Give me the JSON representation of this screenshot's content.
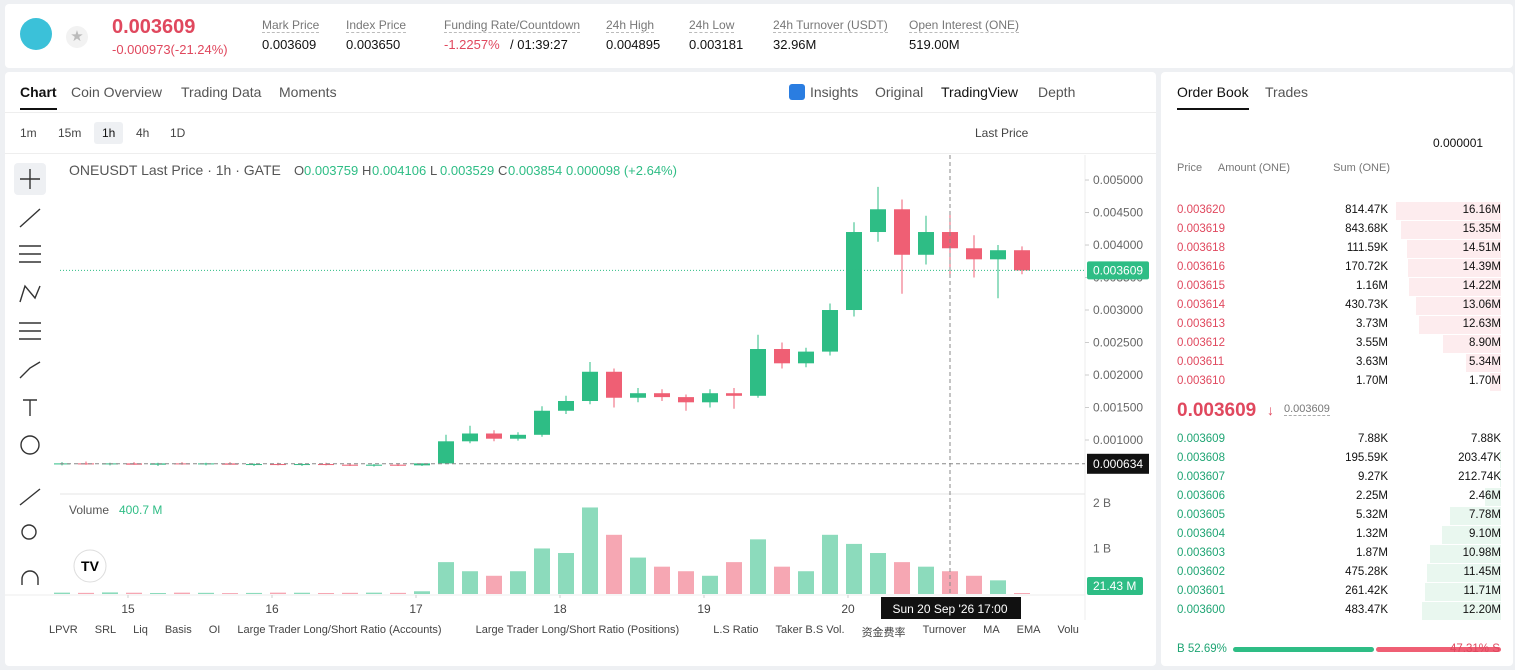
{
  "header": {
    "price": "0.003609",
    "change": "-0.000973(-21.24%)",
    "stats": [
      {
        "label": "Mark Price",
        "value": "0.003609"
      },
      {
        "label": "Index Price",
        "value": "0.003650"
      },
      {
        "label": "Funding Rate/Countdown",
        "value": "-1.2257%",
        "extra": "/ 01:39:27"
      },
      {
        "label": "24h High",
        "value": "0.004895"
      },
      {
        "label": "24h Low",
        "value": "0.003181"
      },
      {
        "label": "24h Turnover (USDT)",
        "value": "32.96M"
      },
      {
        "label": "Open Interest (ONE)",
        "value": "519.00M"
      }
    ]
  },
  "tabs": [
    "Chart",
    "Coin Overview",
    "Trading Data",
    "Moments"
  ],
  "views": [
    "Insights",
    "Original",
    "TradingView",
    "Depth"
  ],
  "intervals": [
    "1m",
    "15m",
    "1h",
    "4h",
    "1D"
  ],
  "price_type": "Last Price",
  "chart_data": {
    "type": "candlestick",
    "title": "ONEUSDT Last Price · 1h · GATE",
    "ohlc": [
      {
        "key": "O",
        "value": "0.003759"
      },
      {
        "key": "H",
        "value": "0.004106"
      },
      {
        "key": "L",
        "value": "0.003529"
      },
      {
        "key": "C",
        "value": "0.003854"
      }
    ],
    "change": "0.000098 (+2.64%)",
    "up_color": "#2ebd85",
    "down_color": "#ef5f74",
    "x": [
      0,
      4,
      8,
      12,
      16,
      20,
      24,
      28,
      32,
      36,
      40,
      44,
      48,
      52,
      56,
      60,
      64,
      68,
      72,
      76,
      80,
      84,
      88,
      92,
      96,
      100,
      104,
      108,
      112,
      116,
      120,
      124,
      128,
      132,
      136,
      140,
      144,
      148,
      152,
      156,
      160
    ],
    "candles": [
      [
        0.00063,
        0.00066,
        0.00061,
        0.00064
      ],
      [
        0.00064,
        0.00067,
        0.00062,
        0.00063
      ],
      [
        0.00063,
        0.00065,
        0.00061,
        0.00064
      ],
      [
        0.00064,
        0.00066,
        0.00062,
        0.00062
      ],
      [
        0.00062,
        0.00065,
        0.0006,
        0.00064
      ],
      [
        0.00064,
        0.00066,
        0.00062,
        0.00063
      ],
      [
        0.00063,
        0.00065,
        0.00061,
        0.00064
      ],
      [
        0.00064,
        0.00066,
        0.00062,
        0.00062
      ],
      [
        0.00062,
        0.00064,
        0.0006,
        0.00063
      ],
      [
        0.00063,
        0.00065,
        0.00061,
        0.00062
      ],
      [
        0.00062,
        0.00064,
        0.0006,
        0.00063
      ],
      [
        0.00063,
        0.00065,
        0.00061,
        0.00062
      ],
      [
        0.00062,
        0.00064,
        0.0006,
        0.00061
      ],
      [
        0.00061,
        0.00063,
        0.00059,
        0.00062
      ],
      [
        0.00062,
        0.00064,
        0.0006,
        0.00061
      ],
      [
        0.00061,
        0.00064,
        0.0006,
        0.00064
      ],
      [
        0.00064,
        0.00108,
        0.00063,
        0.00098
      ],
      [
        0.00098,
        0.00122,
        0.00095,
        0.0011
      ],
      [
        0.0011,
        0.00115,
        0.00098,
        0.00102
      ],
      [
        0.00102,
        0.00112,
        0.00099,
        0.00108
      ],
      [
        0.00108,
        0.00152,
        0.00105,
        0.00145
      ],
      [
        0.00145,
        0.00168,
        0.0014,
        0.0016
      ],
      [
        0.0016,
        0.0022,
        0.00155,
        0.00205
      ],
      [
        0.00205,
        0.0021,
        0.0015,
        0.00165
      ],
      [
        0.00165,
        0.0018,
        0.00158,
        0.00172
      ],
      [
        0.00172,
        0.00178,
        0.0016,
        0.00166
      ],
      [
        0.00166,
        0.0017,
        0.00145,
        0.00158
      ],
      [
        0.00158,
        0.00178,
        0.0015,
        0.00172
      ],
      [
        0.00172,
        0.0018,
        0.00148,
        0.00168
      ],
      [
        0.00168,
        0.00262,
        0.00165,
        0.0024
      ],
      [
        0.0024,
        0.0025,
        0.0021,
        0.00218
      ],
      [
        0.00218,
        0.00242,
        0.00212,
        0.00236
      ],
      [
        0.00236,
        0.0031,
        0.0023,
        0.003
      ],
      [
        0.003,
        0.00435,
        0.0029,
        0.0042
      ],
      [
        0.0042,
        0.004895,
        0.00405,
        0.00455
      ],
      [
        0.00455,
        0.0047,
        0.00325,
        0.00385
      ],
      [
        0.00385,
        0.00445,
        0.0037,
        0.0042
      ],
      [
        0.0042,
        0.0045,
        0.00355,
        0.00395
      ],
      [
        0.00395,
        0.00415,
        0.0035,
        0.00378
      ],
      [
        0.00378,
        0.004,
        0.003181,
        0.00392
      ],
      [
        0.00392,
        0.00398,
        0.00355,
        0.003609
      ]
    ],
    "xlim": [
      0,
      171
    ],
    "xticks": [
      {
        "value": 11,
        "label": "15"
      },
      {
        "value": 35,
        "label": "16"
      },
      {
        "value": 59,
        "label": "17"
      },
      {
        "value": 83,
        "label": "18"
      },
      {
        "value": 107,
        "label": "19"
      },
      {
        "value": 131,
        "label": "20"
      }
    ],
    "ylim": [
      0.0002,
      0.005385
    ],
    "yticks": [
      {
        "value": 0.005,
        "label": "0.005000"
      },
      {
        "value": 0.0045,
        "label": "0.004500"
      },
      {
        "value": 0.004,
        "label": "0.004000"
      },
      {
        "value": 0.0035,
        "label": "0.003500"
      },
      {
        "value": 0.003,
        "label": "0.003000"
      },
      {
        "value": 0.0025,
        "label": "0.002500"
      },
      {
        "value": 0.002,
        "label": "0.002000"
      },
      {
        "value": 0.0015,
        "label": "0.001500"
      },
      {
        "value": 0.001,
        "label": "0.001000"
      }
    ],
    "last_price": 0.003609,
    "crosshair": {
      "x": 148,
      "x_label": "Sun 20 Sep '26   17:00",
      "y": 0.000634
    },
    "volume": {
      "title": "Volume",
      "value": "400.7 M",
      "ylim": [
        0,
        2130
      ],
      "yticks": [
        {
          "value": 2000,
          "label": "2 B"
        },
        {
          "value": 1000,
          "label": "1 B"
        }
      ],
      "values": [
        30,
        25,
        35,
        28,
        22,
        30,
        26,
        20,
        24,
        30,
        28,
        22,
        26,
        30,
        25,
        60,
        700,
        500,
        400,
        500,
        1000,
        900,
        1900,
        1300,
        800,
        600,
        500,
        400,
        700,
        1200,
        600,
        500,
        1300,
        1100,
        900,
        700,
        600,
        500,
        400,
        300,
        21.43
      ],
      "last_label": "21.43 M"
    }
  },
  "indicators": [
    "LPVR",
    "SRL",
    "Liq",
    "Basis",
    "OI",
    "Large Trader Long/Short Ratio (Accounts)",
    "Large Trader Long/Short Ratio (Positions)",
    "L.S Ratio",
    "Taker B.S Vol.",
    "资金费率",
    "Turnover",
    "MA",
    "EMA",
    "Volu"
  ],
  "order_book": {
    "tabs": [
      "Order Book",
      "Trades"
    ],
    "precision": "0.000001",
    "columns": [
      "Price",
      "Amount (ONE)",
      "Sum (ONE)"
    ],
    "asks": [
      [
        "0.003620",
        "814.47K",
        "16.16M"
      ],
      [
        "0.003619",
        "843.68K",
        "15.35M"
      ],
      [
        "0.003618",
        "111.59K",
        "14.51M"
      ],
      [
        "0.003616",
        "170.72K",
        "14.39M"
      ],
      [
        "0.003615",
        "1.16M",
        "14.22M"
      ],
      [
        "0.003614",
        "430.73K",
        "13.06M"
      ],
      [
        "0.003613",
        "3.73M",
        "12.63M"
      ],
      [
        "0.003612",
        "3.55M",
        "8.90M"
      ],
      [
        "0.003611",
        "3.63M",
        "5.34M"
      ],
      [
        "0.003610",
        "1.70M",
        "1.70M"
      ]
    ],
    "last": "0.003609",
    "mark": "0.003609",
    "bids": [
      [
        "0.003609",
        "7.88K",
        "7.88K"
      ],
      [
        "0.003608",
        "195.59K",
        "203.47K"
      ],
      [
        "0.003607",
        "9.27K",
        "212.74K"
      ],
      [
        "0.003606",
        "2.25M",
        "2.46M"
      ],
      [
        "0.003605",
        "5.32M",
        "7.78M"
      ],
      [
        "0.003604",
        "1.32M",
        "9.10M"
      ],
      [
        "0.003603",
        "1.87M",
        "10.98M"
      ],
      [
        "0.003602",
        "475.28K",
        "11.45M"
      ],
      [
        "0.003601",
        "261.42K",
        "11.71M"
      ],
      [
        "0.003600",
        "483.47K",
        "12.20M"
      ]
    ],
    "ratio": {
      "buy": 52.69,
      "sell": 47.31,
      "buy_label": "B 52.69%",
      "sell_label": "47.31% S"
    }
  }
}
